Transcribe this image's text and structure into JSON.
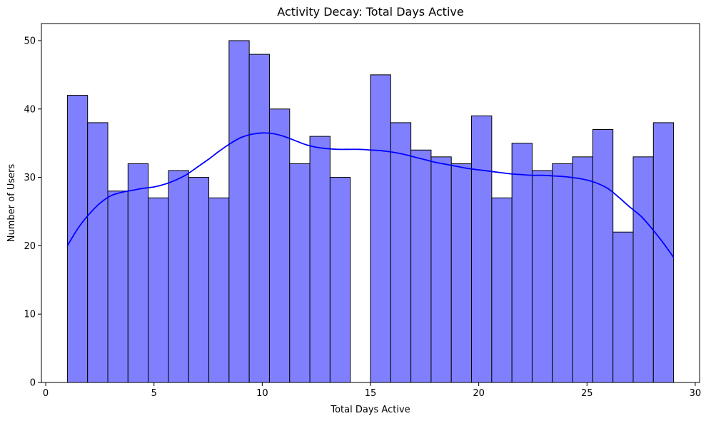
{
  "chart_data": {
    "type": "bar",
    "title": "Activity Decay: Total Days Active",
    "xlabel": "Total Days Active",
    "ylabel": "Number of Users",
    "xlim": [
      -0.2,
      30.2
    ],
    "ylim": [
      0,
      52.5
    ],
    "xticks": [
      0,
      5,
      10,
      15,
      20,
      25,
      30
    ],
    "yticks": [
      0,
      10,
      20,
      30,
      40,
      50
    ],
    "grid": false,
    "bar_color": "#8080ff",
    "bar_edge_color": "#000000",
    "kde_color": "#0000ff",
    "bins": [
      {
        "start": 1.0,
        "end": 1.9333,
        "count": 42
      },
      {
        "start": 1.9333,
        "end": 2.8667,
        "count": 38
      },
      {
        "start": 2.8667,
        "end": 3.8,
        "count": 28
      },
      {
        "start": 3.8,
        "end": 4.7333,
        "count": 32
      },
      {
        "start": 4.7333,
        "end": 5.6667,
        "count": 27
      },
      {
        "start": 5.6667,
        "end": 6.6,
        "count": 31
      },
      {
        "start": 6.6,
        "end": 7.5333,
        "count": 30
      },
      {
        "start": 7.5333,
        "end": 8.4667,
        "count": 27
      },
      {
        "start": 8.4667,
        "end": 9.4,
        "count": 50
      },
      {
        "start": 9.4,
        "end": 10.3333,
        "count": 48
      },
      {
        "start": 10.3333,
        "end": 11.2667,
        "count": 40
      },
      {
        "start": 11.2667,
        "end": 12.2,
        "count": 32
      },
      {
        "start": 12.2,
        "end": 13.1333,
        "count": 36
      },
      {
        "start": 13.1333,
        "end": 14.0667,
        "count": 30
      },
      {
        "start": 14.0667,
        "end": 15.0,
        "count": 0
      },
      {
        "start": 15.0,
        "end": 15.9333,
        "count": 45
      },
      {
        "start": 15.9333,
        "end": 16.8667,
        "count": 38
      },
      {
        "start": 16.8667,
        "end": 17.8,
        "count": 34
      },
      {
        "start": 17.8,
        "end": 18.7333,
        "count": 33
      },
      {
        "start": 18.7333,
        "end": 19.6667,
        "count": 32
      },
      {
        "start": 19.6667,
        "end": 20.6,
        "count": 39
      },
      {
        "start": 20.6,
        "end": 21.5333,
        "count": 27
      },
      {
        "start": 21.5333,
        "end": 22.4667,
        "count": 35
      },
      {
        "start": 22.4667,
        "end": 23.4,
        "count": 31
      },
      {
        "start": 23.4,
        "end": 24.3333,
        "count": 32
      },
      {
        "start": 24.3333,
        "end": 25.2667,
        "count": 33
      },
      {
        "start": 25.2667,
        "end": 26.2,
        "count": 37
      },
      {
        "start": 26.2,
        "end": 27.1333,
        "count": 22
      },
      {
        "start": 27.1333,
        "end": 28.0667,
        "count": 33
      },
      {
        "start": 28.0667,
        "end": 29.0,
        "count": 38
      }
    ],
    "kde_curve": {
      "x": [
        1,
        1.5,
        2,
        2.5,
        3,
        3.5,
        4,
        4.5,
        5,
        5.5,
        6,
        6.5,
        7,
        7.5,
        8,
        8.5,
        9,
        9.5,
        10,
        10.5,
        11,
        11.5,
        12,
        12.5,
        13,
        13.5,
        14,
        14.5,
        15,
        15.5,
        16,
        16.5,
        17,
        17.5,
        18,
        18.5,
        19,
        19.5,
        20,
        20.5,
        21,
        21.5,
        22,
        22.5,
        23,
        23.5,
        24,
        24.5,
        25,
        25.5,
        26,
        26.5,
        27,
        27.5,
        28,
        28.5,
        29
      ],
      "y": [
        20.0,
        22.6,
        24.6,
        26.2,
        27.3,
        27.8,
        28.1,
        28.4,
        28.6,
        29.0,
        29.6,
        30.4,
        31.5,
        32.6,
        33.8,
        34.9,
        35.8,
        36.3,
        36.5,
        36.4,
        36.0,
        35.4,
        34.8,
        34.4,
        34.2,
        34.1,
        34.1,
        34.1,
        34.0,
        33.9,
        33.7,
        33.4,
        33.0,
        32.6,
        32.2,
        31.9,
        31.6,
        31.3,
        31.1,
        30.9,
        30.7,
        30.5,
        30.4,
        30.3,
        30.3,
        30.2,
        30.1,
        29.9,
        29.6,
        29.1,
        28.3,
        27.0,
        25.6,
        24.3,
        22.5,
        20.5,
        18.3
      ]
    }
  }
}
